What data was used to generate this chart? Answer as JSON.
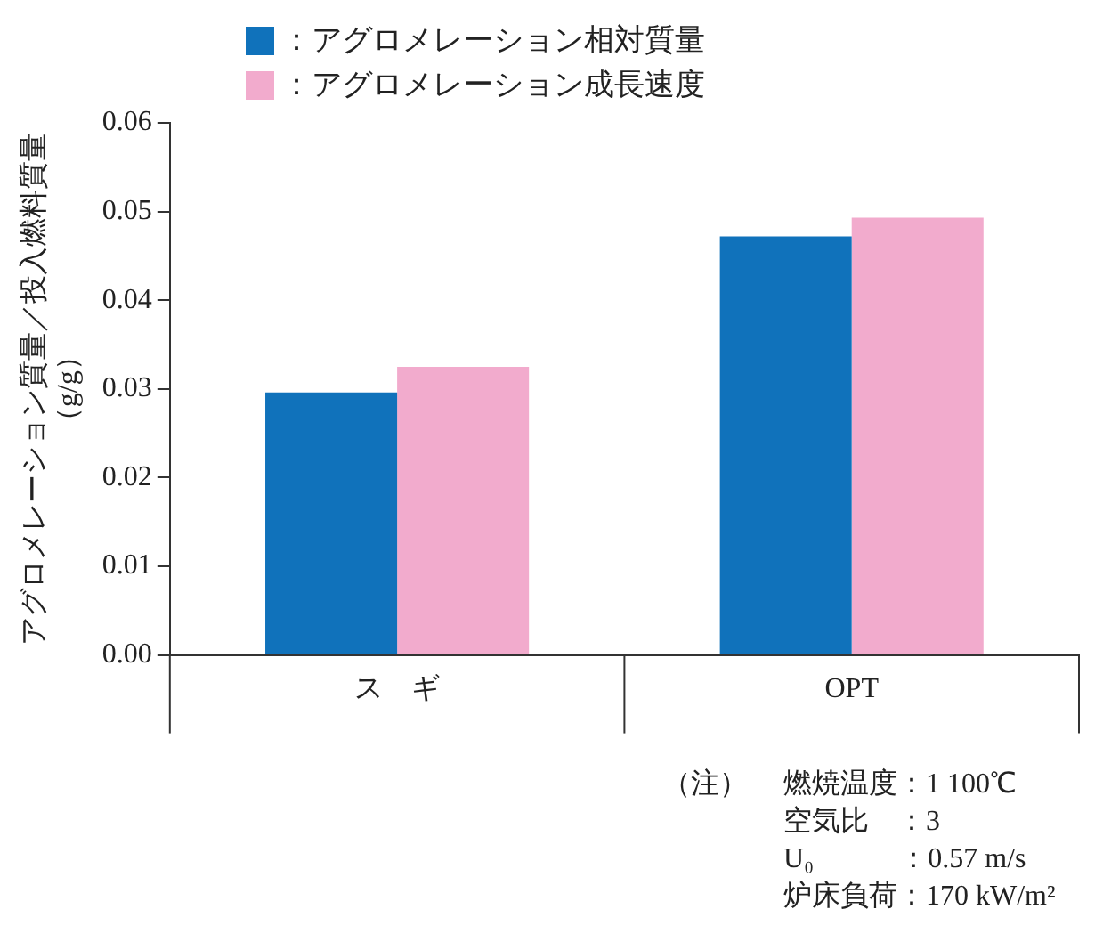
{
  "chart_data": {
    "type": "bar",
    "ylabel": "アグロメレーション質量／投入燃料質量（g/g）",
    "categories": [
      "ス　ギ",
      "OPT"
    ],
    "series": [
      {
        "name": "：アグロメレーション相対質量",
        "color": "#1072bb",
        "values": [
          0.0296,
          0.0472
        ]
      },
      {
        "name": "：アグロメレーション成長速度",
        "color": "#f2abcd",
        "values": [
          0.0325,
          0.0493
        ]
      }
    ],
    "ylim": [
      0,
      0.06
    ],
    "yticks": [
      {
        "value": 0,
        "label": "0.00"
      },
      {
        "value": 0.01,
        "label": "0.01"
      },
      {
        "value": 0.02,
        "label": "0.02"
      },
      {
        "value": 0.03,
        "label": "0.03"
      },
      {
        "value": 0.04,
        "label": "0.04"
      },
      {
        "value": 0.05,
        "label": "0.05"
      },
      {
        "value": 0.06,
        "label": "0.06"
      }
    ],
    "grid": false,
    "legend": "top left",
    "annotations": [
      "（注）",
      "燃焼温度：1 100℃",
      "空気比　：3",
      "U₀　　　：0.57 m/s",
      "炉床負荷：170 kW/m²"
    ]
  }
}
